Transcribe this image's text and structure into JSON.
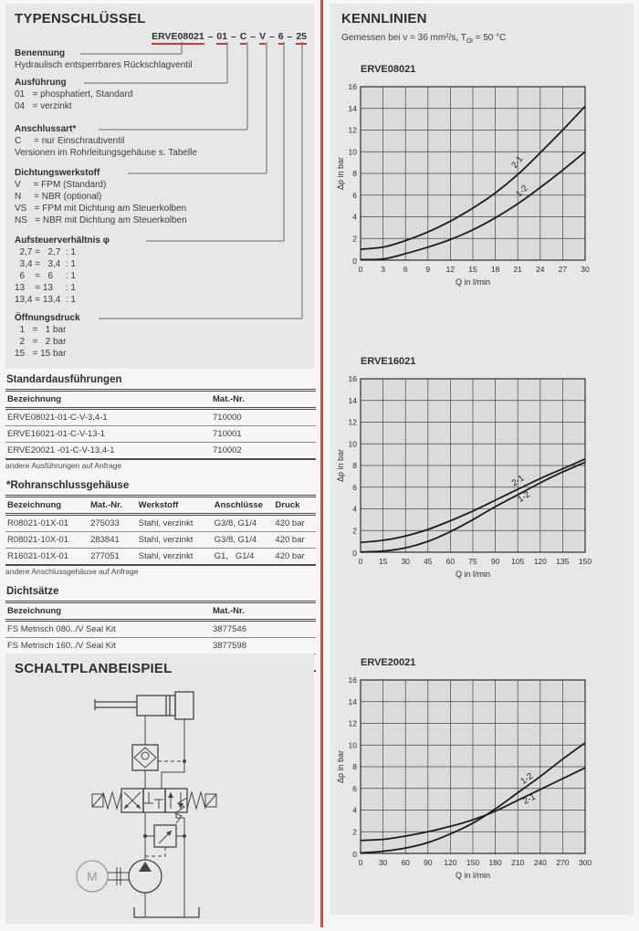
{
  "typenschluessel": {
    "title": "TYPENSCHLÜSSEL",
    "code_segments": [
      "ERVE08021",
      "01",
      "C",
      "V",
      "6",
      "25"
    ],
    "code_separator": " – ",
    "sections": [
      {
        "heading": "Benennung",
        "lines": [
          "Hydraulisch entsperrbares Rückschlagventil"
        ]
      },
      {
        "heading": "Ausführung",
        "lines": [
          "01   = phosphatiert, Standard",
          "04   = verzinkt"
        ]
      },
      {
        "heading": "Anschlussart*",
        "lines": [
          "C     = nur Einschraubventil",
          "Versionen im Rohrleitungsgehäuse s. Tabelle"
        ]
      },
      {
        "heading": "Dichtungswerkstoff",
        "lines": [
          "V     = FPM (Standard)",
          "N     = NBR (optional)",
          "VS   = FPM mit Dichtung am Steuerkolben",
          "NS   = NBR mit Dichtung am Steuerkolben"
        ]
      },
      {
        "heading": "Aufsteuerverhältnis φ",
        "lines": [
          "  2,7 =   2,7  : 1",
          "  3,4 =   3,4  : 1",
          "  6    =   6     : 1",
          "13    = 13     : 1",
          "13,4 = 13,4  : 1"
        ]
      },
      {
        "heading": "Öffnungsdruck",
        "lines": [
          "  1   =   1 bar",
          "  2   =   2 bar",
          "15   = 15 bar"
        ]
      }
    ]
  },
  "tables": {
    "standard": {
      "title": "Standardausführungen",
      "headers": [
        "Bezeichnung",
        "Mat.-Nr."
      ],
      "rows": [
        [
          "ERVE08021-01-C-V-3,4-1",
          "710000"
        ],
        [
          "ERVE16021-01-C-V-13-1",
          "710001"
        ],
        [
          "ERVE20021 -01-C-V-13,4-1",
          "710002"
        ]
      ],
      "footnote": "andere Ausführungen auf Anfrage"
    },
    "housing": {
      "title": "*Rohranschlussgehäuse",
      "headers": [
        "Bezeichnung",
        "Mat.-Nr.",
        "Werkstoff",
        "Anschlüsse",
        "Druck"
      ],
      "rows": [
        [
          "R08021-01X-01",
          "275033",
          "Stahl, verzinkt",
          "G3/8, G1/4",
          "420 bar"
        ],
        [
          "R08021-10X-01",
          "283841",
          "Stahl, verzinkt",
          "G3/8, G1/4",
          "420 bar"
        ],
        [
          "R16021-01X-01",
          "277051",
          "Stahl, verzinkt",
          "G1,   G1/4",
          "420 bar"
        ]
      ],
      "footnote": "andere Anschlussgehäuse auf Anfrage"
    },
    "seals": {
      "title": "Dichtsätze",
      "headers": [
        "Bezeichnung",
        "Mat.-Nr."
      ],
      "rows": [
        [
          "FS Metrisch 080../V Seal Kit",
          "3877546"
        ],
        [
          "FS Metrisch 160../V Seal Kit",
          "3877598"
        ],
        [
          "FS Metrisch 200../V Seal Kit",
          "3877655"
        ]
      ],
      "footnote": ""
    }
  },
  "schaltplan": {
    "title": "SCHALTPLANBEISPIEL",
    "motor_label": "M"
  },
  "kennlinien": {
    "title": "KENNLINIEN",
    "subtitle_prefix": "Gemessen bei ν = 36 mm²/s, T",
    "subtitle_sub": "Öl",
    "subtitle_suffix": " = 50 °C"
  },
  "chart_data": [
    {
      "type": "line",
      "title": "ERVE08021",
      "xlabel": "Q in l/min",
      "ylabel": "Δp in bar",
      "xlim": [
        0,
        30
      ],
      "ylim": [
        0,
        16
      ],
      "xticks": [
        0,
        3,
        6,
        9,
        12,
        15,
        18,
        21,
        24,
        27,
        30
      ],
      "yticks": [
        2,
        4,
        6,
        8,
        10,
        12,
        14,
        16
      ],
      "grid": true,
      "legend": "inline-curve-labels",
      "series": [
        {
          "name": "2-1",
          "points": [
            [
              0,
              1.0
            ],
            [
              3,
              1.2
            ],
            [
              6,
              1.8
            ],
            [
              9,
              2.6
            ],
            [
              12,
              3.6
            ],
            [
              15,
              4.8
            ],
            [
              18,
              6.2
            ],
            [
              21,
              7.9
            ],
            [
              24,
              9.9
            ],
            [
              27,
              12.0
            ],
            [
              30,
              14.2
            ]
          ],
          "label": {
            "x": 21.2,
            "y": 8.9,
            "angle": -52
          }
        },
        {
          "name": "1-2",
          "points": [
            [
              0,
              0.05
            ],
            [
              3,
              0.1
            ],
            [
              6,
              0.6
            ],
            [
              9,
              1.2
            ],
            [
              12,
              1.9
            ],
            [
              15,
              2.8
            ],
            [
              18,
              3.9
            ],
            [
              21,
              5.2
            ],
            [
              24,
              6.7
            ],
            [
              27,
              8.3
            ],
            [
              30,
              10.0
            ]
          ],
          "label": {
            "x": 21.8,
            "y": 6.2,
            "angle": -45
          }
        }
      ]
    },
    {
      "type": "line",
      "title": "ERVE16021",
      "xlabel": "Q in l/min",
      "ylabel": "Δp in bar",
      "xlim": [
        0,
        150
      ],
      "ylim": [
        0,
        16
      ],
      "xticks": [
        0,
        15,
        30,
        45,
        60,
        75,
        90,
        105,
        120,
        135,
        150
      ],
      "yticks": [
        2,
        4,
        6,
        8,
        10,
        12,
        14,
        16
      ],
      "grid": true,
      "legend": "inline-curve-labels",
      "series": [
        {
          "name": "2-1",
          "points": [
            [
              0,
              0.9
            ],
            [
              15,
              1.1
            ],
            [
              30,
              1.5
            ],
            [
              45,
              2.1
            ],
            [
              60,
              2.9
            ],
            [
              75,
              3.8
            ],
            [
              90,
              4.8
            ],
            [
              105,
              5.8
            ],
            [
              120,
              6.8
            ],
            [
              135,
              7.7
            ],
            [
              150,
              8.6
            ]
          ],
          "label": {
            "x": 106,
            "y": 6.4,
            "angle": -33
          }
        },
        {
          "name": "1-2",
          "points": [
            [
              0,
              0.02
            ],
            [
              15,
              0.1
            ],
            [
              30,
              0.4
            ],
            [
              45,
              1.0
            ],
            [
              60,
              1.9
            ],
            [
              75,
              3.0
            ],
            [
              90,
              4.2
            ],
            [
              105,
              5.3
            ],
            [
              120,
              6.4
            ],
            [
              135,
              7.4
            ],
            [
              150,
              8.3
            ]
          ],
          "label": {
            "x": 110,
            "y": 4.9,
            "angle": -33
          }
        }
      ]
    },
    {
      "type": "line",
      "title": "ERVE20021",
      "xlabel": "Q in l/min",
      "ylabel": "Δp in bar",
      "xlim": [
        0,
        300
      ],
      "ylim": [
        0,
        16
      ],
      "xticks": [
        0,
        30,
        60,
        90,
        120,
        150,
        180,
        210,
        240,
        270,
        300
      ],
      "yticks": [
        2,
        4,
        6,
        8,
        10,
        12,
        14,
        16
      ],
      "grid": true,
      "legend": "inline-curve-labels",
      "series": [
        {
          "name": "1-2",
          "points": [
            [
              0,
              0.05
            ],
            [
              30,
              0.2
            ],
            [
              60,
              0.5
            ],
            [
              90,
              1.0
            ],
            [
              120,
              1.8
            ],
            [
              150,
              2.8
            ],
            [
              180,
              4.1
            ],
            [
              210,
              5.6
            ],
            [
              240,
              7.1
            ],
            [
              270,
              8.7
            ],
            [
              300,
              10.2
            ]
          ],
          "label": {
            "x": 224,
            "y": 6.7,
            "angle": -35
          }
        },
        {
          "name": "2-1",
          "points": [
            [
              0,
              1.2
            ],
            [
              30,
              1.3
            ],
            [
              60,
              1.6
            ],
            [
              90,
              2.0
            ],
            [
              120,
              2.5
            ],
            [
              150,
              3.1
            ],
            [
              180,
              3.9
            ],
            [
              210,
              4.9
            ],
            [
              240,
              5.9
            ],
            [
              270,
              6.9
            ],
            [
              300,
              7.9
            ]
          ],
          "label": {
            "x": 227,
            "y": 4.8,
            "angle": -27
          }
        }
      ]
    }
  ],
  "colors": {
    "accent_red": "#e0463c",
    "panel_gray": "#e6e7e9",
    "plot_bg": "#d9dbdd",
    "line_black": "#1c1c1c"
  }
}
